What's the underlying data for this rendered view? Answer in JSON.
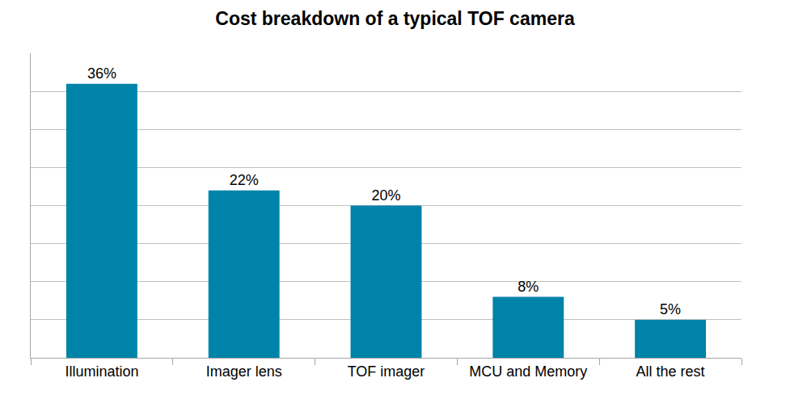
{
  "chart_data": {
    "type": "bar",
    "title": "Cost breakdown of a typical TOF camera",
    "categories": [
      "Illumination",
      "Imager lens",
      "TOF imager",
      "MCU and Memory",
      "All the rest"
    ],
    "values": [
      36,
      22,
      20,
      8,
      5
    ],
    "value_labels": [
      "36%",
      "22%",
      "20%",
      "8%",
      "5%"
    ],
    "color": "#0083a9",
    "ylim": [
      0,
      40
    ],
    "yticks": [
      0,
      5,
      10,
      15,
      20,
      25,
      30,
      35,
      40
    ],
    "grid": true,
    "data_labels": true,
    "tick_labels": "x"
  }
}
